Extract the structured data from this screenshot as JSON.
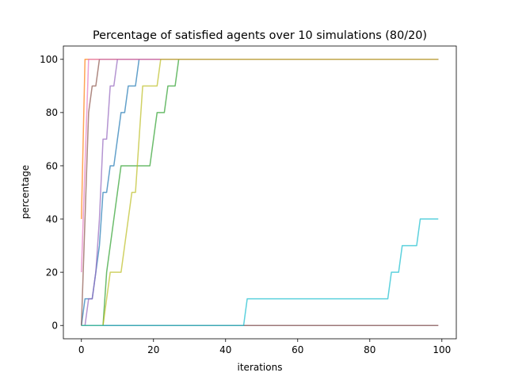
{
  "chart_data": {
    "type": "line",
    "title": "Percentage of satisfied agents over 10 simulations (80/20)",
    "xlabel": "iterations",
    "ylabel": "percentage",
    "xlim": [
      -5,
      104
    ],
    "ylim": [
      -5,
      105
    ],
    "xticks": [
      0,
      20,
      40,
      60,
      80,
      100
    ],
    "yticks": [
      0,
      20,
      40,
      60,
      80,
      100
    ],
    "grid": false,
    "colors": [
      "#1f77b4",
      "#ff7f0e",
      "#2ca02c",
      "#d62728",
      "#9467bd",
      "#8c564b",
      "#e377c2",
      "#7f7f7f",
      "#bcbd22",
      "#17becf"
    ],
    "series": [
      {
        "x": [
          0,
          1,
          2,
          3,
          4,
          5,
          6,
          7,
          8,
          9,
          10,
          11,
          12,
          13,
          14,
          15,
          16,
          99
        ],
        "y": [
          0,
          10,
          10,
          10,
          20,
          30,
          50,
          50,
          60,
          60,
          70,
          80,
          80,
          90,
          90,
          90,
          100,
          100
        ]
      },
      {
        "x": [
          0,
          1,
          99
        ],
        "y": [
          40,
          100,
          100
        ]
      },
      {
        "x": [
          0,
          5,
          6,
          7,
          8,
          9,
          10,
          11,
          12,
          13,
          14,
          15,
          16,
          17,
          18,
          19,
          20,
          21,
          22,
          23,
          24,
          25,
          26,
          27,
          99
        ],
        "y": [
          0,
          0,
          0,
          20,
          30,
          40,
          50,
          60,
          60,
          60,
          60,
          60,
          60,
          60,
          60,
          60,
          70,
          80,
          80,
          80,
          90,
          90,
          90,
          100,
          100
        ]
      },
      {
        "x": [
          0,
          99
        ],
        "y": [
          0,
          0
        ]
      },
      {
        "x": [
          0,
          1,
          2,
          3,
          4,
          5,
          6,
          7,
          8,
          9,
          10,
          99
        ],
        "y": [
          0,
          0,
          10,
          10,
          20,
          40,
          70,
          70,
          90,
          90,
          100,
          100
        ]
      },
      {
        "x": [
          0,
          1,
          2,
          3,
          4,
          5,
          99
        ],
        "y": [
          0,
          40,
          80,
          90,
          90,
          100,
          100
        ]
      },
      {
        "x": [
          0,
          1,
          2,
          99
        ],
        "y": [
          20,
          60,
          100,
          100
        ]
      },
      {
        "x": [
          0,
          99
        ],
        "y": [
          0,
          0
        ]
      },
      {
        "x": [
          0,
          5,
          6,
          7,
          8,
          9,
          10,
          11,
          12,
          13,
          14,
          15,
          16,
          17,
          18,
          19,
          20,
          21,
          22,
          99
        ],
        "y": [
          0,
          0,
          0,
          10,
          20,
          20,
          20,
          20,
          30,
          40,
          50,
          50,
          70,
          90,
          90,
          90,
          90,
          90,
          100,
          100
        ]
      },
      {
        "x": [
          0,
          45,
          46,
          84,
          85,
          86,
          87,
          88,
          89,
          90,
          91,
          92,
          93,
          94,
          99
        ],
        "y": [
          0,
          0,
          10,
          10,
          10,
          20,
          20,
          20,
          30,
          30,
          30,
          30,
          30,
          40,
          40
        ]
      }
    ]
  }
}
